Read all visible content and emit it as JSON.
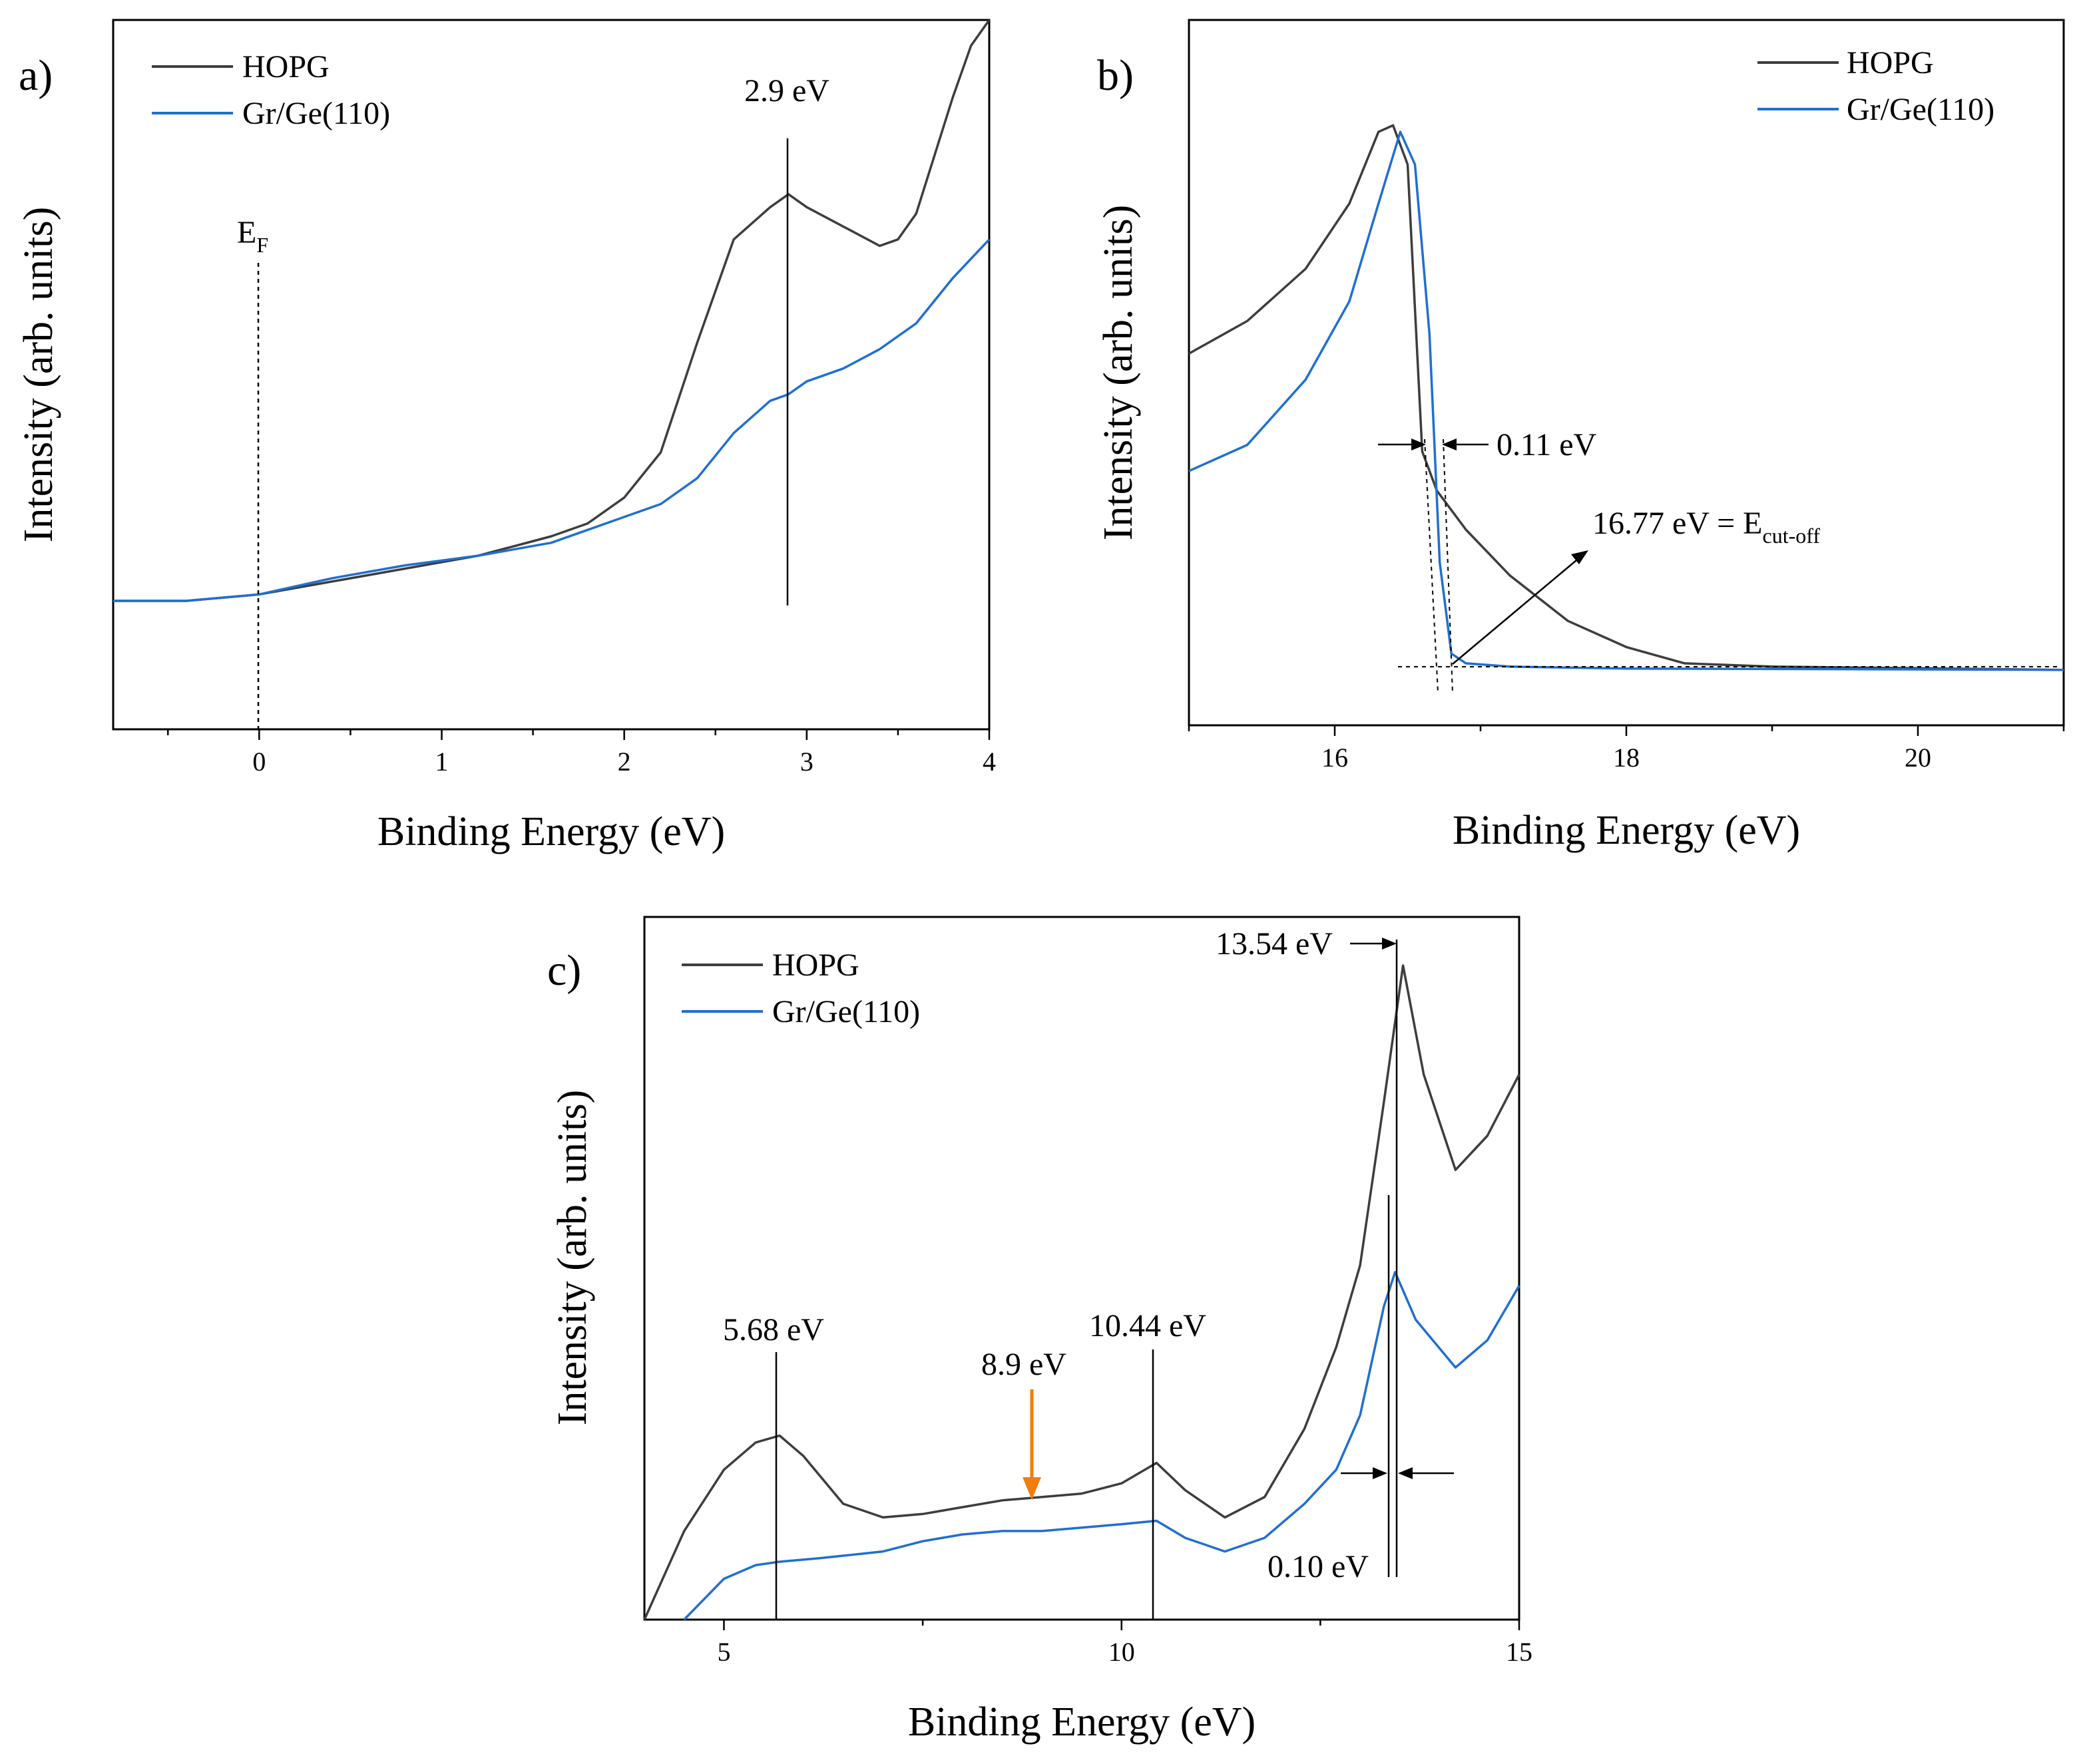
{
  "colors": {
    "hopg": "#3d3d3d",
    "grge": "#1f6fd1",
    "marker": "#f07d10",
    "axis": "#000000"
  },
  "chart_data": [
    {
      "panel": "a)",
      "type": "line",
      "xlabel": "Binding Energy (eV)",
      "ylabel": "Intensity (arb. units)",
      "xlim": [
        -0.8,
        4
      ],
      "ylim": [
        0,
        1
      ],
      "xticks": [
        0,
        1,
        2,
        3,
        4
      ],
      "legend_loc": "top-left",
      "annotations": {
        "fermi_label": "E",
        "fermi_sub": "F",
        "peak_label": "2.9 eV"
      },
      "series": [
        {
          "name": "HOPG",
          "x": [
            -0.8,
            -0.4,
            0,
            0.4,
            0.8,
            1.2,
            1.6,
            1.8,
            2.0,
            2.2,
            2.4,
            2.6,
            2.8,
            2.9,
            3.0,
            3.2,
            3.4,
            3.5,
            3.6,
            3.8,
            3.9,
            4.0
          ],
          "y": [
            0.1,
            0.1,
            0.11,
            0.13,
            0.15,
            0.17,
            0.2,
            0.22,
            0.26,
            0.33,
            0.5,
            0.66,
            0.71,
            0.73,
            0.71,
            0.68,
            0.65,
            0.66,
            0.7,
            0.88,
            0.96,
            1.0
          ]
        },
        {
          "name": "Gr/Ge(110)",
          "x": [
            -0.8,
            -0.4,
            0,
            0.4,
            0.8,
            1.2,
            1.6,
            1.8,
            2.0,
            2.2,
            2.4,
            2.6,
            2.8,
            2.9,
            3.0,
            3.2,
            3.4,
            3.6,
            3.8,
            4.0
          ],
          "y": [
            0.1,
            0.1,
            0.11,
            0.135,
            0.155,
            0.17,
            0.19,
            0.21,
            0.23,
            0.25,
            0.29,
            0.36,
            0.41,
            0.42,
            0.44,
            0.46,
            0.49,
            0.53,
            0.6,
            0.66
          ]
        }
      ]
    },
    {
      "panel": "b)",
      "type": "line",
      "xlabel": "Binding Energy (eV)",
      "ylabel": "Intensity (arb. units)",
      "xlim": [
        15,
        21
      ],
      "ylim": [
        0,
        1
      ],
      "xticks": [
        16,
        18,
        20
      ],
      "legend_loc": "top-right",
      "annotations": {
        "shift_label": "0.11 eV",
        "cutoff_label": "16.77 eV = E",
        "cutoff_sub": "cut-off"
      },
      "series": [
        {
          "name": "HOPG",
          "x": [
            15,
            15.4,
            15.8,
            16.1,
            16.3,
            16.4,
            16.5,
            16.6,
            16.7,
            16.9,
            17.2,
            17.6,
            18.0,
            18.4,
            19,
            21
          ],
          "y": [
            0.57,
            0.62,
            0.7,
            0.8,
            0.91,
            0.92,
            0.86,
            0.42,
            0.36,
            0.3,
            0.23,
            0.16,
            0.12,
            0.095,
            0.09,
            0.085
          ]
        },
        {
          "name": "Gr/Ge(110)",
          "x": [
            15,
            15.4,
            15.8,
            16.1,
            16.3,
            16.45,
            16.55,
            16.65,
            16.72,
            16.8,
            16.9,
            17.2,
            18,
            21
          ],
          "y": [
            0.39,
            0.43,
            0.53,
            0.65,
            0.8,
            0.91,
            0.86,
            0.6,
            0.25,
            0.11,
            0.095,
            0.09,
            0.087,
            0.085
          ]
        }
      ]
    },
    {
      "panel": "c)",
      "type": "line",
      "xlabel": "Binding Energy (eV)",
      "ylabel": "Intensity (arb. units)",
      "xlim": [
        4,
        15
      ],
      "ylim": [
        0,
        1
      ],
      "xticks": [
        5,
        10,
        15
      ],
      "legend_loc": "top-left",
      "annotations": {
        "peak1": "5.68 eV",
        "peak2": "8.9 eV",
        "peak3": "10.44 eV",
        "peak4": "13.54 eV",
        "shift": "0.10 eV"
      },
      "series": [
        {
          "name": "HOPG",
          "x": [
            4,
            4.5,
            5,
            5.4,
            5.7,
            6.0,
            6.5,
            7,
            7.5,
            8,
            8.5,
            9,
            9.5,
            10,
            10.44,
            10.8,
            11.3,
            11.8,
            12.3,
            12.7,
            13.0,
            13.3,
            13.54,
            13.8,
            14.2,
            14.6,
            15
          ],
          "y": [
            0.0,
            0.13,
            0.22,
            0.26,
            0.27,
            0.24,
            0.17,
            0.15,
            0.155,
            0.165,
            0.175,
            0.18,
            0.185,
            0.2,
            0.23,
            0.19,
            0.15,
            0.18,
            0.28,
            0.4,
            0.52,
            0.76,
            0.96,
            0.8,
            0.66,
            0.71,
            0.8
          ]
        },
        {
          "name": "Gr/Ge(110)",
          "x": [
            4.5,
            5,
            5.4,
            5.7,
            6.2,
            7,
            7.5,
            8,
            8.5,
            9,
            9.5,
            10,
            10.44,
            10.8,
            11.3,
            11.8,
            12.3,
            12.7,
            13.0,
            13.3,
            13.44,
            13.7,
            14.2,
            14.6,
            15
          ],
          "y": [
            0.0,
            0.06,
            0.08,
            0.085,
            0.09,
            0.1,
            0.115,
            0.125,
            0.13,
            0.13,
            0.135,
            0.14,
            0.145,
            0.12,
            0.1,
            0.12,
            0.17,
            0.22,
            0.3,
            0.46,
            0.51,
            0.44,
            0.37,
            0.41,
            0.49
          ]
        }
      ]
    }
  ]
}
